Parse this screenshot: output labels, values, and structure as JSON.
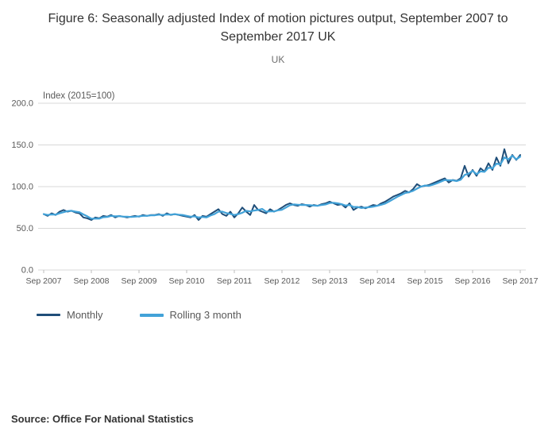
{
  "header": {
    "title": "Figure 6: Seasonally adjusted Index of motion pictures output, September 2007 to September 2017 UK",
    "subtitle": "UK"
  },
  "source_line": "Source: Office For National Statistics",
  "chart_data": {
    "type": "line",
    "title": "Figure 6: Seasonally adjusted Index of motion pictures output, September 2007 to September 2017 UK",
    "subtitle": "UK",
    "axis_title": "Index (2015=100)",
    "ylim": [
      0,
      200
    ],
    "grid": "horizontal",
    "legend_position": "bottom",
    "y_ticks": [
      {
        "label": "0.0",
        "value": 0
      },
      {
        "label": "50.0",
        "value": 50
      },
      {
        "label": "100.0",
        "value": 100
      },
      {
        "label": "150.0",
        "value": 150
      },
      {
        "label": "200.0",
        "value": 200
      }
    ],
    "x_tick_labels": [
      "Sep 2007",
      "Sep 2008",
      "Sep 2009",
      "Sep 2010",
      "Sep 2011",
      "Sep 2012",
      "Sep 2013",
      "Sep 2014",
      "Sep 2015",
      "Sep 2016",
      "Sep 2017"
    ],
    "x_start": "Sep 2007",
    "x_end": "Sep 2017",
    "x_frequency": "monthly",
    "series": [
      {
        "name": "Monthly",
        "color": "#1f4e79",
        "values": [
          67,
          65,
          68,
          66,
          70,
          72,
          70,
          71,
          69,
          68,
          63,
          62,
          60,
          63,
          62,
          65,
          64,
          66,
          63,
          65,
          64,
          63,
          64,
          65,
          64,
          66,
          65,
          66,
          66,
          67,
          65,
          68,
          66,
          67,
          66,
          65,
          64,
          63,
          66,
          60,
          65,
          64,
          67,
          70,
          73,
          67,
          65,
          70,
          63,
          68,
          75,
          70,
          66,
          78,
          72,
          70,
          68,
          73,
          70,
          72,
          75,
          78,
          80,
          78,
          77,
          79,
          78,
          76,
          78,
          77,
          79,
          80,
          82,
          80,
          78,
          79,
          75,
          80,
          72,
          75,
          76,
          74,
          76,
          78,
          77,
          80,
          82,
          85,
          88,
          90,
          92,
          95,
          93,
          97,
          103,
          100,
          101,
          102,
          104,
          106,
          108,
          110,
          105,
          108,
          107,
          110,
          125,
          112,
          120,
          113,
          122,
          118,
          128,
          120,
          135,
          125,
          145,
          128,
          138,
          132,
          138
        ]
      },
      {
        "name": "Rolling 3 month",
        "color": "#42a2d8",
        "derived": "trailing 3-month mean of Monthly"
      }
    ]
  }
}
